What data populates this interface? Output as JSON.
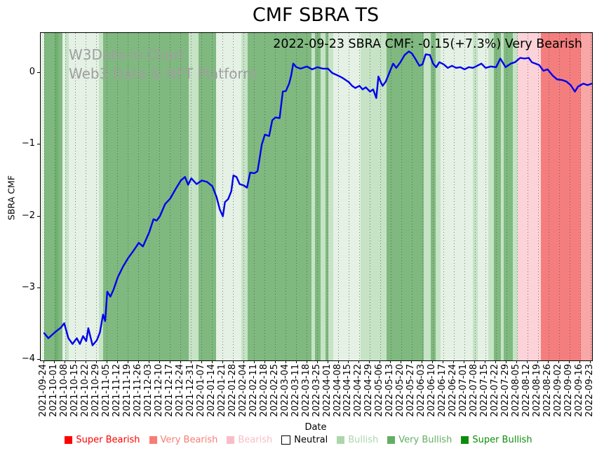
{
  "header": {
    "title": "CMF SBRA TS"
  },
  "watermark": {
    "line1": "W3Data.io Chart",
    "line2": "Web3 Data & NFT Platform"
  },
  "annotation": "2022-09-23 SBRA CMF: -0.15(+7.3%) Very Bearish",
  "axes": {
    "ylabel": "SBRA CMF",
    "xlabel": "Date",
    "yticks": [
      {
        "label": "0",
        "value": 0
      },
      {
        "label": "−1",
        "value": -1
      },
      {
        "label": "−2",
        "value": -2
      },
      {
        "label": "−3",
        "value": -3
      },
      {
        "label": "−4",
        "value": -4
      }
    ]
  },
  "legend": [
    {
      "label": "Super Bearish",
      "marker": "#fe0000",
      "text": "#fe0000",
      "outlined": false
    },
    {
      "label": "Very Bearish",
      "marker": "#f87d74",
      "text": "#f87d74",
      "outlined": false
    },
    {
      "label": "Bearish",
      "marker": "#f9bdc8",
      "text": "#f9bdc8",
      "outlined": false
    },
    {
      "label": "Neutral",
      "marker": "#ffffff",
      "text": "#000000",
      "outlined": true
    },
    {
      "label": "Bullish",
      "marker": "#abd7ab",
      "text": "#abd7ab",
      "outlined": false
    },
    {
      "label": "Very Bullish",
      "marker": "#64ae64",
      "text": "#64ae64",
      "outlined": false
    },
    {
      "label": "Super Bullish",
      "marker": "#0c8e0c",
      "text": "#0c8e0c",
      "outlined": false
    }
  ],
  "palette": {
    "line": "#0000ee",
    "bands": {
      "bullish_pale": "#e4f1e4",
      "bullish": "#c6e3c6",
      "very_bullish": "#7fb97f",
      "very_bullish_dark": "#6fb06f",
      "bearish": "#fcd3d8",
      "very_bearish": "#f47e7e",
      "very_bearish_light": "#f9a6a6"
    }
  },
  "chart_data": {
    "type": "line",
    "title": "CMF SBRA TS",
    "xlabel": "Date",
    "ylabel": "SBRA CMF",
    "ylim": [
      -4.01,
      0.56
    ],
    "ytick_values": [
      0,
      -1,
      -2,
      -3,
      -4
    ],
    "grid": "vertical-dotted-weekly",
    "legend_position": "bottom",
    "x_tick_labels": [
      "2021-09-24",
      "2021-10-01",
      "2021-10-08",
      "2021-10-15",
      "2021-10-22",
      "2021-10-29",
      "2021-11-05",
      "2021-11-12",
      "2021-11-19",
      "2021-11-26",
      "2021-12-03",
      "2021-12-10",
      "2021-12-17",
      "2021-12-24",
      "2021-12-31",
      "2022-01-07",
      "2022-01-14",
      "2022-01-21",
      "2022-01-28",
      "2022-02-04",
      "2022-02-11",
      "2022-02-18",
      "2022-02-25",
      "2022-03-04",
      "2022-03-11",
      "2022-03-18",
      "2022-03-25",
      "2022-04-01",
      "2022-04-08",
      "2022-04-15",
      "2022-04-22",
      "2022-04-29",
      "2022-05-06",
      "2022-05-13",
      "2022-05-20",
      "2022-05-27",
      "2022-06-03",
      "2022-06-10",
      "2022-06-17",
      "2022-06-24",
      "2022-07-01",
      "2022-07-08",
      "2022-07-15",
      "2022-07-22",
      "2022-07-29",
      "2022-08-05",
      "2022-08-12",
      "2022-08-19",
      "2022-08-26",
      "2022-09-02",
      "2022-09-09",
      "2022-09-16",
      "2022-09-23"
    ],
    "series": [
      {
        "name": "SBRA CMF",
        "color": "#0000ee",
        "x_unit": "weeks_from_2021-09-24",
        "points": [
          [
            0,
            -3.63
          ],
          [
            0.4,
            -3.7
          ],
          [
            1,
            -3.62
          ],
          [
            1.6,
            -3.55
          ],
          [
            1.9,
            -3.49
          ],
          [
            2.3,
            -3.7
          ],
          [
            2.7,
            -3.78
          ],
          [
            3.1,
            -3.7
          ],
          [
            3.4,
            -3.78
          ],
          [
            3.7,
            -3.67
          ],
          [
            4,
            -3.74
          ],
          [
            4.2,
            -3.56
          ],
          [
            4.6,
            -3.8
          ],
          [
            5,
            -3.73
          ],
          [
            5.3,
            -3.62
          ],
          [
            5.6,
            -3.37
          ],
          [
            5.8,
            -3.46
          ],
          [
            6,
            -3.05
          ],
          [
            6.3,
            -3.12
          ],
          [
            6.6,
            -3.02
          ],
          [
            7,
            -2.85
          ],
          [
            7.5,
            -2.7
          ],
          [
            8,
            -2.58
          ],
          [
            8.5,
            -2.48
          ],
          [
            9,
            -2.37
          ],
          [
            9.4,
            -2.42
          ],
          [
            10,
            -2.22
          ],
          [
            10.4,
            -2.04
          ],
          [
            10.7,
            -2.06
          ],
          [
            11,
            -2
          ],
          [
            11.5,
            -1.83
          ],
          [
            12,
            -1.75
          ],
          [
            12.5,
            -1.62
          ],
          [
            13,
            -1.5
          ],
          [
            13.4,
            -1.45
          ],
          [
            13.7,
            -1.56
          ],
          [
            14,
            -1.47
          ],
          [
            14.5,
            -1.55
          ],
          [
            15,
            -1.5
          ],
          [
            15.5,
            -1.52
          ],
          [
            16,
            -1.58
          ],
          [
            16.4,
            -1.73
          ],
          [
            16.7,
            -1.9
          ],
          [
            17,
            -2
          ],
          [
            17.2,
            -1.8
          ],
          [
            17.5,
            -1.76
          ],
          [
            17.8,
            -1.65
          ],
          [
            18,
            -1.43
          ],
          [
            18.3,
            -1.45
          ],
          [
            18.6,
            -1.55
          ],
          [
            19,
            -1.57
          ],
          [
            19.3,
            -1.6
          ],
          [
            19.6,
            -1.39
          ],
          [
            20,
            -1.4
          ],
          [
            20.3,
            -1.37
          ],
          [
            20.5,
            -1.19
          ],
          [
            20.7,
            -1
          ],
          [
            21,
            -0.86
          ],
          [
            21.4,
            -0.88
          ],
          [
            21.7,
            -0.66
          ],
          [
            22,
            -0.62
          ],
          [
            22.4,
            -0.63
          ],
          [
            22.7,
            -0.26
          ],
          [
            23,
            -0.25
          ],
          [
            23.3,
            -0.15
          ],
          [
            23.5,
            -0.04
          ],
          [
            23.7,
            0.13
          ],
          [
            24,
            0.08
          ],
          [
            24.4,
            0.06
          ],
          [
            25,
            0.09
          ],
          [
            25.5,
            0.05
          ],
          [
            26,
            0.08
          ],
          [
            26.5,
            0.06
          ],
          [
            27,
            0.06
          ],
          [
            27.4,
            0
          ],
          [
            28,
            -0.04
          ],
          [
            28.4,
            -0.07
          ],
          [
            29,
            -0.13
          ],
          [
            29.3,
            -0.18
          ],
          [
            29.6,
            -0.21
          ],
          [
            30,
            -0.18
          ],
          [
            30.3,
            -0.23
          ],
          [
            30.6,
            -0.2
          ],
          [
            31,
            -0.26
          ],
          [
            31.3,
            -0.23
          ],
          [
            31.6,
            -0.35
          ],
          [
            31.8,
            -0.05
          ],
          [
            32,
            -0.12
          ],
          [
            32.2,
            -0.18
          ],
          [
            32.5,
            -0.12
          ],
          [
            33,
            0.06
          ],
          [
            33.2,
            0.13
          ],
          [
            33.5,
            0.07
          ],
          [
            33.9,
            0.15
          ],
          [
            34.3,
            0.25
          ],
          [
            34.7,
            0.3
          ],
          [
            35,
            0.27
          ],
          [
            35.3,
            0.2
          ],
          [
            35.7,
            0.1
          ],
          [
            36,
            0.12
          ],
          [
            36.3,
            0.26
          ],
          [
            36.7,
            0.25
          ],
          [
            37,
            0.13
          ],
          [
            37.3,
            0.08
          ],
          [
            37.6,
            0.15
          ],
          [
            38,
            0.12
          ],
          [
            38.4,
            0.07
          ],
          [
            38.8,
            0.1
          ],
          [
            39.2,
            0.07
          ],
          [
            39.6,
            0.08
          ],
          [
            40,
            0.05
          ],
          [
            40.4,
            0.08
          ],
          [
            40.8,
            0.07
          ],
          [
            41.2,
            0.1
          ],
          [
            41.6,
            0.13
          ],
          [
            42,
            0.07
          ],
          [
            42.5,
            0.09
          ],
          [
            43,
            0.08
          ],
          [
            43.4,
            0.2
          ],
          [
            43.9,
            0.08
          ],
          [
            44.4,
            0.13
          ],
          [
            44.8,
            0.15
          ],
          [
            45.3,
            0.21
          ],
          [
            45.7,
            0.2
          ],
          [
            46.1,
            0.21
          ],
          [
            46.4,
            0.15
          ],
          [
            47.1,
            0.11
          ],
          [
            47.5,
            0.03
          ],
          [
            47.9,
            0.05
          ],
          [
            48.4,
            -0.04
          ],
          [
            48.8,
            -0.09
          ],
          [
            49.3,
            -0.1
          ],
          [
            49.7,
            -0.12
          ],
          [
            50.1,
            -0.17
          ],
          [
            50.5,
            -0.26
          ],
          [
            50.8,
            -0.19
          ],
          [
            51.3,
            -0.15
          ],
          [
            51.7,
            -0.17
          ],
          [
            52.1,
            -0.15
          ]
        ]
      }
    ],
    "background_bands": [
      [
        -0.33,
        0,
        "bullish_pale"
      ],
      [
        0,
        1,
        "very_bullish"
      ],
      [
        1,
        1.34,
        "very_bullish_dark"
      ],
      [
        1.34,
        1.74,
        "very_bullish"
      ],
      [
        1.74,
        2,
        "bullish_pale"
      ],
      [
        2,
        2.34,
        "bullish"
      ],
      [
        2.34,
        5.21,
        "bullish_pale"
      ],
      [
        5.21,
        5.61,
        "bullish"
      ],
      [
        5.61,
        13.75,
        "very_bullish"
      ],
      [
        13.75,
        14.69,
        "bullish"
      ],
      [
        14.69,
        16.36,
        "very_bullish"
      ],
      [
        16.36,
        18.76,
        "bullish_pale"
      ],
      [
        18.76,
        19.36,
        "bullish"
      ],
      [
        19.36,
        25.43,
        "very_bullish"
      ],
      [
        25.43,
        25.77,
        "bullish"
      ],
      [
        25.77,
        26.3,
        "very_bullish"
      ],
      [
        26.3,
        26.77,
        "bullish"
      ],
      [
        26.77,
        27.04,
        "very_bullish"
      ],
      [
        27.04,
        27.5,
        "bullish"
      ],
      [
        27.5,
        30.11,
        "bullish_pale"
      ],
      [
        30.11,
        32.58,
        "bullish"
      ],
      [
        32.58,
        36.11,
        "very_bullish"
      ],
      [
        36.11,
        36.78,
        "bullish"
      ],
      [
        36.78,
        37.25,
        "very_bullish"
      ],
      [
        37.25,
        37.72,
        "bullish"
      ],
      [
        37.72,
        40.79,
        "bullish_pale"
      ],
      [
        40.79,
        41.26,
        "bullish"
      ],
      [
        41.26,
        42.26,
        "bullish_pale"
      ],
      [
        42.26,
        42.79,
        "bullish"
      ],
      [
        42.79,
        43.46,
        "very_bullish"
      ],
      [
        43.46,
        43.73,
        "bullish"
      ],
      [
        43.73,
        44.59,
        "very_bullish"
      ],
      [
        44.59,
        45.06,
        "bullish"
      ],
      [
        45.06,
        47.26,
        "bearish"
      ],
      [
        47.26,
        51.07,
        "very_bearish"
      ],
      [
        51.07,
        52.14,
        "very_bearish_light"
      ]
    ]
  }
}
